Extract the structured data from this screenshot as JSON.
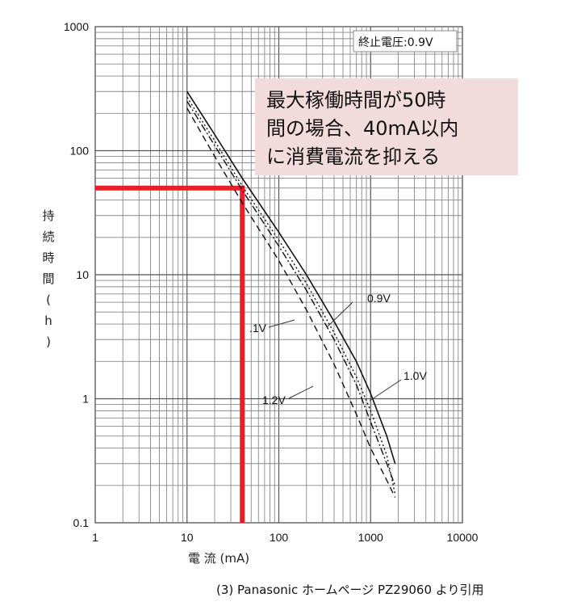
{
  "chart_data": {
    "type": "line",
    "title": "",
    "xlabel": "電 流 (mA)",
    "ylabel": "持続時間(h)",
    "xscale": "log",
    "yscale": "log",
    "xlim": [
      1,
      10000
    ],
    "ylim": [
      0.1,
      1000
    ],
    "grid": true,
    "x_ticks": [
      "1",
      "10",
      "100",
      "1000",
      "10000"
    ],
    "y_ticks": [
      "0.1",
      "1",
      "10",
      "100",
      "1000"
    ],
    "condition_note": "終止電圧:0.9V",
    "series": [
      {
        "name": "0.9V",
        "style": "dotted",
        "x": [
          10,
          20,
          40,
          100,
          200,
          400,
          700,
          1000,
          1500,
          1850
        ],
        "y": [
          270,
          120,
          52,
          19,
          8.5,
          3.4,
          1.5,
          0.8,
          0.35,
          0.17
        ]
      },
      {
        "name": "1.0V",
        "style": "solid",
        "x": [
          10,
          20,
          40,
          100,
          200,
          400,
          700,
          1000,
          1500,
          1850
        ],
        "y": [
          300,
          135,
          60,
          22,
          10,
          4.2,
          2.0,
          1.1,
          0.5,
          0.3
        ]
      },
      {
        "name": ".1V",
        "style": "dashdot",
        "x": [
          10,
          20,
          40,
          100,
          200,
          400,
          700,
          1000,
          1500,
          1850
        ],
        "y": [
          250,
          110,
          48,
          17,
          7.5,
          3.0,
          1.3,
          0.65,
          0.3,
          0.2
        ]
      },
      {
        "name": "1.2V",
        "style": "dashed",
        "x": [
          10,
          20,
          40,
          100,
          200,
          400,
          700,
          1000,
          1500,
          1850
        ],
        "y": [
          220,
          90,
          38,
          13,
          5.2,
          1.9,
          0.75,
          0.4,
          0.22,
          0.16
        ]
      }
    ],
    "annotation": {
      "lines": [
        "最大稼働時間が50時",
        "間の場合、40mA以内",
        "に消費電流を抑える"
      ],
      "marker_x": 40,
      "marker_y": 50,
      "marker_color": "#ee1c25",
      "box_color": "#f2dcdb"
    }
  },
  "source_note": "(3) Panasonic ホームページ PZ29060 より引用"
}
